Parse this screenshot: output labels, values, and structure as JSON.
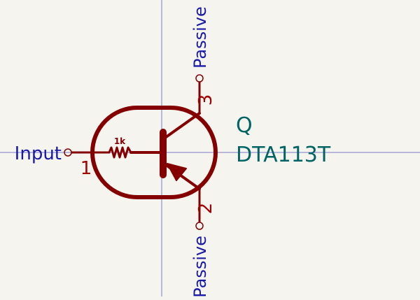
{
  "symbol": {
    "reference": "Q",
    "value": "DTA113T",
    "resistor_label": "1k",
    "pins": [
      {
        "number": "1",
        "name": "Input",
        "type": "input"
      },
      {
        "number": "3",
        "name": "Passive",
        "type": "passive"
      },
      {
        "number": "2",
        "name": "Passive",
        "type": "passive"
      }
    ]
  },
  "colors": {
    "background": "#f5f4ef",
    "symbol_body": "#840000",
    "pin_number": "#a00000",
    "pin_name": "#1a1aa8",
    "field_text": "#006464",
    "crosshair": "#7a7ac8"
  }
}
